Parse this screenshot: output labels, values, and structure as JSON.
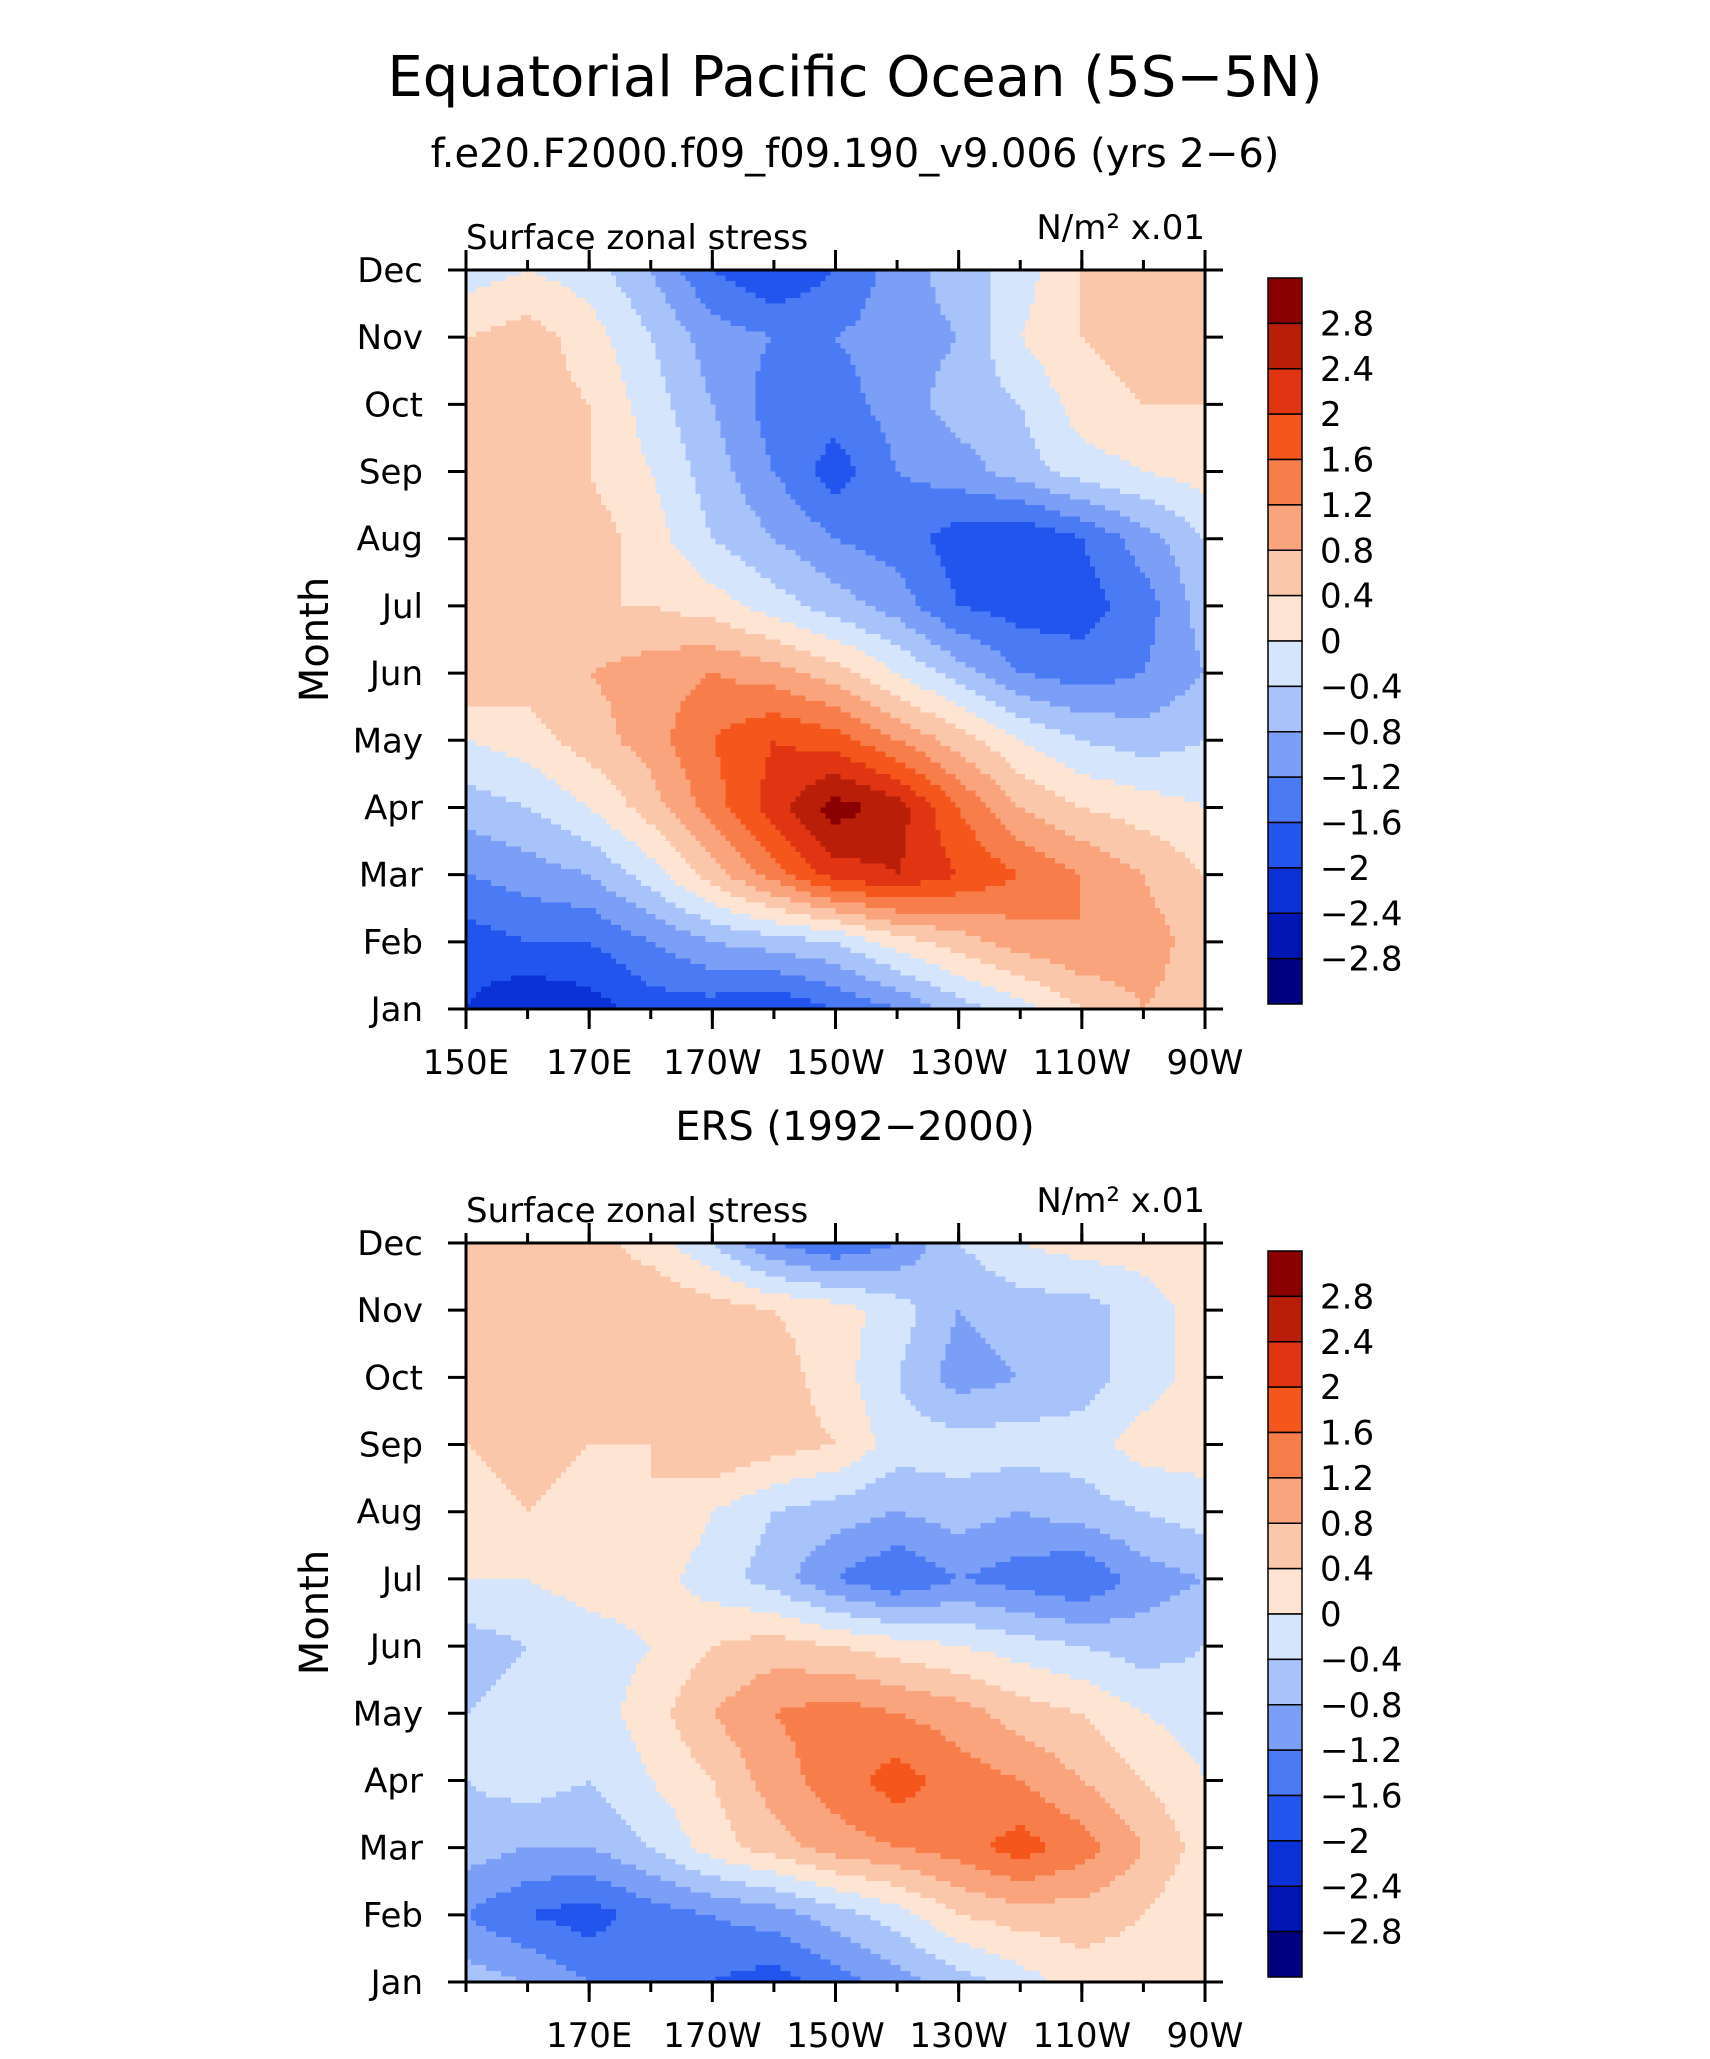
{
  "page": {
    "title": "Equatorial Pacific Ocean (5S−5N)"
  },
  "palette": {
    "levels": [
      -3.2,
      -2.8,
      -2.4,
      -2.0,
      -1.6,
      -1.2,
      -0.8,
      -0.4,
      0,
      0.4,
      0.8,
      1.2,
      1.6,
      2.0,
      2.4,
      2.8,
      3.2
    ],
    "colors": [
      "#000080",
      "#0015b4",
      "#0a32d6",
      "#2255ee",
      "#4a7af4",
      "#7b9ff7",
      "#a8c2fa",
      "#d4e5fc",
      "#fde4d3",
      "#fbc7ab",
      "#f9a47c",
      "#f77d4b",
      "#f5561c",
      "#e03412",
      "#b81e08",
      "#8b0000"
    ],
    "tick_labels": [
      "2.8",
      "2.4",
      "2",
      "1.6",
      "1.2",
      "0.8",
      "0.4",
      "0",
      "−0.4",
      "−0.8",
      "−1.2",
      "−1.6",
      "−2",
      "−2.4",
      "−2.8"
    ]
  },
  "chart_data": [
    {
      "type": "heatmap",
      "subtitle": "f.e20.F2000.f09_f09.190_v9.006 (yrs 2−6)",
      "variable_label": "Surface zonal stress",
      "units_label": "N/m² x.01",
      "ylabel": "Month",
      "x_units": "degrees east longitude",
      "xlim": [
        150,
        270
      ],
      "x_tick_values": [
        150,
        170,
        190,
        210,
        230,
        250,
        270
      ],
      "x_tick_labels": [
        "150E",
        "170E",
        "170W",
        "150W",
        "130W",
        "110W",
        "90W"
      ],
      "y_tick_labels": [
        "Jan",
        "Feb",
        "Mar",
        "Apr",
        "May",
        "Jun",
        "Jul",
        "Aug",
        "Sep",
        "Oct",
        "Nov",
        "Dec"
      ],
      "colorbar_range": [
        -3.2,
        3.2
      ],
      "x": [
        150,
        160,
        170,
        180,
        190,
        200,
        210,
        220,
        230,
        240,
        250,
        260,
        270
      ],
      "grid": [
        [
          -2.0,
          -2.4,
          -2.2,
          -1.8,
          -1.8,
          -2.0,
          -1.6,
          -1.2,
          -0.6,
          -0.2,
          0.4,
          0.8,
          0.6
        ],
        [
          -1.8,
          -1.6,
          -1.6,
          -1.2,
          -0.8,
          -0.6,
          -0.4,
          0.2,
          0.6,
          1.0,
          1.2,
          1.0,
          0.6
        ],
        [
          -1.2,
          -1.0,
          -0.8,
          -0.2,
          0.6,
          1.4,
          2.2,
          2.4,
          2.0,
          1.6,
          1.2,
          0.8,
          0.4
        ],
        [
          -0.6,
          -0.4,
          0.0,
          0.6,
          1.4,
          2.2,
          3.0,
          2.6,
          1.6,
          0.8,
          0.4,
          0.2,
          0.0
        ],
        [
          0.0,
          0.2,
          0.6,
          1.0,
          1.6,
          2.0,
          1.8,
          1.2,
          0.6,
          0.0,
          -0.4,
          -0.6,
          -0.4
        ],
        [
          0.8,
          0.6,
          0.8,
          1.0,
          1.2,
          1.0,
          0.6,
          0.0,
          -0.6,
          -1.2,
          -1.4,
          -1.2,
          -0.8
        ],
        [
          0.6,
          0.6,
          0.4,
          0.4,
          0.2,
          -0.2,
          -0.6,
          -1.0,
          -1.6,
          -1.8,
          -1.8,
          -1.4,
          -0.6
        ],
        [
          0.6,
          0.6,
          0.6,
          0.2,
          -0.4,
          -0.8,
          -1.2,
          -1.4,
          -1.8,
          -2.0,
          -1.6,
          -1.0,
          -0.4
        ],
        [
          0.6,
          0.6,
          0.4,
          0.0,
          -0.6,
          -1.2,
          -1.8,
          -1.2,
          -1.0,
          -0.6,
          -0.2,
          0.0,
          0.2
        ],
        [
          0.6,
          0.6,
          0.4,
          -0.2,
          -0.8,
          -1.4,
          -1.4,
          -1.0,
          -0.6,
          -0.4,
          0.2,
          0.4,
          0.4
        ],
        [
          0.4,
          0.6,
          0.2,
          -0.4,
          -1.0,
          -1.2,
          -1.2,
          -1.0,
          -0.8,
          0.0,
          0.4,
          0.6,
          0.6
        ],
        [
          -0.2,
          0.0,
          -0.2,
          -0.8,
          -1.6,
          -2.0,
          -1.6,
          -1.0,
          -0.6,
          -0.2,
          0.4,
          0.6,
          0.6
        ]
      ]
    },
    {
      "type": "heatmap",
      "subtitle": "ERS (1992−2000)",
      "variable_label": "Surface zonal stress",
      "units_label": "N/m² x.01",
      "ylabel": "Month",
      "x_units": "degrees east longitude",
      "xlim": [
        150,
        270
      ],
      "x_tick_values": [
        170,
        190,
        210,
        230,
        250,
        270
      ],
      "x_tick_labels": [
        "170E",
        "170W",
        "150W",
        "130W",
        "110W",
        "90W"
      ],
      "y_tick_labels": [
        "Jan",
        "Feb",
        "Mar",
        "Apr",
        "May",
        "Jun",
        "Jul",
        "Aug",
        "Sep",
        "Oct",
        "Nov",
        "Dec"
      ],
      "colorbar_range": [
        -3.2,
        3.2
      ],
      "x": [
        150,
        160,
        170,
        180,
        190,
        200,
        210,
        220,
        230,
        240,
        250,
        260,
        270
      ],
      "grid": [
        [
          -0.6,
          -0.8,
          -1.2,
          -1.4,
          -1.6,
          -1.8,
          -1.4,
          -1.0,
          -0.6,
          -0.2,
          0.2,
          0.2,
          0.0
        ],
        [
          -1.2,
          -1.6,
          -1.8,
          -1.4,
          -1.2,
          -1.0,
          -0.6,
          -0.2,
          0.4,
          0.6,
          0.6,
          0.4,
          0.0
        ],
        [
          -0.6,
          -0.8,
          -0.8,
          -0.4,
          0.2,
          0.6,
          1.0,
          1.2,
          1.4,
          1.8,
          1.4,
          0.8,
          0.2
        ],
        [
          -0.4,
          -0.2,
          -0.4,
          0.0,
          0.4,
          1.0,
          1.4,
          1.8,
          1.4,
          1.2,
          0.8,
          0.4,
          0.0
        ],
        [
          -0.4,
          -0.2,
          -0.2,
          0.2,
          0.8,
          1.2,
          1.4,
          1.2,
          1.0,
          0.6,
          0.4,
          0.0,
          -0.2
        ],
        [
          -0.6,
          -0.4,
          -0.2,
          0.0,
          0.4,
          0.6,
          0.4,
          0.2,
          0.0,
          -0.2,
          -0.4,
          -0.6,
          -0.4
        ],
        [
          0.0,
          0.0,
          0.2,
          0.2,
          -0.2,
          -0.6,
          -1.2,
          -1.6,
          -1.2,
          -1.4,
          -1.6,
          -1.0,
          -0.8
        ],
        [
          0.2,
          0.4,
          0.2,
          0.4,
          0.0,
          -0.4,
          -0.6,
          -0.8,
          -0.6,
          -0.8,
          -0.6,
          -0.4,
          -0.2
        ],
        [
          0.4,
          0.6,
          0.4,
          0.4,
          0.8,
          0.6,
          0.4,
          -0.2,
          -0.2,
          -0.2,
          -0.2,
          0.2,
          0.2
        ],
        [
          0.6,
          0.4,
          0.4,
          0.6,
          0.4,
          0.6,
          0.2,
          -0.4,
          -1.0,
          -0.8,
          -0.6,
          -0.2,
          0.2
        ],
        [
          0.4,
          0.6,
          0.4,
          0.8,
          0.6,
          0.4,
          0.2,
          -0.2,
          -0.8,
          -0.6,
          -0.6,
          -0.2,
          0.2
        ],
        [
          0.6,
          0.8,
          0.6,
          0.2,
          -0.4,
          -1.2,
          -1.6,
          -1.2,
          -0.4,
          0.0,
          0.2,
          0.2,
          0.2
        ]
      ]
    }
  ]
}
